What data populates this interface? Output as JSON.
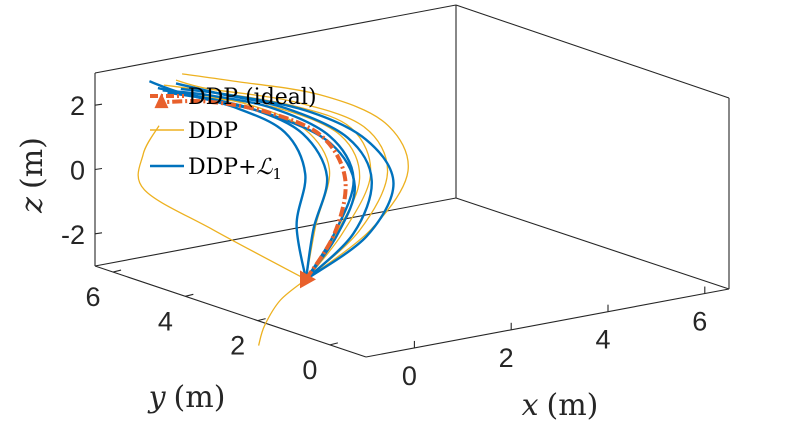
{
  "chart_data": {
    "type": "line",
    "dimension": "3d",
    "xlabel_var": "x",
    "xlabel_unit": "(m)",
    "ylabel_var": "y",
    "ylabel_unit": "(m)",
    "zlabel_var": "z",
    "zlabel_unit": "(m)",
    "xlim": [
      -1,
      6.5
    ],
    "ylim": [
      -1,
      6.5
    ],
    "zlim": [
      -3,
      3
    ],
    "x_ticks": [
      0,
      2,
      4,
      6
    ],
    "y_ticks": [
      0,
      2,
      4,
      6
    ],
    "z_ticks": [
      -2,
      0,
      2
    ],
    "x_tick_labels": [
      "0",
      "2",
      "4",
      "6"
    ],
    "y_tick_labels": [
      "0",
      "2",
      "4",
      "6"
    ],
    "z_tick_labels": [
      "-2",
      "0",
      "2"
    ],
    "grid": false,
    "legend_position": "top-left",
    "legend": [
      {
        "series": "ideal",
        "label": "DDP (ideal)",
        "color": "#e8602c",
        "style": "dash-dot"
      },
      {
        "series": "ddp",
        "label": "DDP",
        "color": "#edb120",
        "style": "solid"
      },
      {
        "series": "l1",
        "label_text": "DDP+",
        "label_symbol": "ℒ",
        "label_subscript": "1",
        "color": "#0072bd",
        "style": "solid"
      }
    ],
    "start_marker": {
      "x": 0,
      "y": 2,
      "z": -2,
      "color": "#e8602c"
    },
    "end_marker": {
      "x": 0,
      "y": 6,
      "z": 2,
      "color": "#e8602c"
    },
    "series": [
      {
        "name": "DDP (ideal)",
        "color": "#e8602c",
        "points": [
          {
            "x": 0,
            "y": 2,
            "z": -2
          },
          {
            "x": 1.5,
            "y": 3.2,
            "z": -1.4
          },
          {
            "x": 2.6,
            "y": 4.4,
            "z": -0.5
          },
          {
            "x": 2.7,
            "y": 5.2,
            "z": 0.5
          },
          {
            "x": 1.9,
            "y": 5.6,
            "z": 1.3
          },
          {
            "x": 0.9,
            "y": 5.9,
            "z": 1.8
          },
          {
            "x": 0,
            "y": 6,
            "z": 2
          }
        ]
      },
      {
        "name": "DDP",
        "color": "#edb120",
        "trajectories": [
          [
            {
              "x": 0,
              "y": 2,
              "z": -2
            },
            {
              "x": 2.0,
              "y": 3.2,
              "z": -1.5
            },
            {
              "x": 3.4,
              "y": 4.3,
              "z": -0.5
            },
            {
              "x": 3.5,
              "y": 5.1,
              "z": 0.6
            },
            {
              "x": 2.4,
              "y": 5.6,
              "z": 1.5
            },
            {
              "x": 0.9,
              "y": 5.9,
              "z": 2.2
            },
            {
              "x": 0.3,
              "y": 6.0,
              "z": 2.6
            }
          ],
          [
            {
              "x": 0,
              "y": 2,
              "z": -2
            },
            {
              "x": 1.8,
              "y": 3.4,
              "z": -1.6
            },
            {
              "x": 3.2,
              "y": 4.5,
              "z": -0.6
            },
            {
              "x": 3.4,
              "y": 5.3,
              "z": 0.5
            },
            {
              "x": 2.5,
              "y": 5.7,
              "z": 1.3
            },
            {
              "x": 1.1,
              "y": 6.0,
              "z": 2.0
            },
            {
              "x": 0.2,
              "y": 6.2,
              "z": 2.4
            }
          ],
          [
            {
              "x": 0,
              "y": 2,
              "z": -2
            },
            {
              "x": 2.1,
              "y": 3.0,
              "z": -1.4
            },
            {
              "x": 3.6,
              "y": 4.0,
              "z": -0.4
            },
            {
              "x": 3.8,
              "y": 4.9,
              "z": 0.7
            },
            {
              "x": 2.9,
              "y": 5.5,
              "z": 1.6
            },
            {
              "x": 1.4,
              "y": 5.9,
              "z": 2.3
            },
            {
              "x": 0.5,
              "y": 6.1,
              "z": 2.7
            }
          ],
          [
            {
              "x": 0,
              "y": 2,
              "z": -2
            },
            {
              "x": 1.6,
              "y": 3.3,
              "z": -1.5
            },
            {
              "x": 2.9,
              "y": 4.4,
              "z": -0.6
            },
            {
              "x": 3.1,
              "y": 5.2,
              "z": 0.4
            },
            {
              "x": 2.2,
              "y": 5.7,
              "z": 1.3
            },
            {
              "x": 0.9,
              "y": 6.0,
              "z": 1.9
            },
            {
              "x": 0.1,
              "y": 6.1,
              "z": 2.3
            }
          ],
          [
            {
              "x": 0,
              "y": 2,
              "z": -2
            },
            {
              "x": 1.4,
              "y": 3.6,
              "z": -1.3
            },
            {
              "x": 2.5,
              "y": 4.7,
              "z": -0.3
            },
            {
              "x": 2.5,
              "y": 5.4,
              "z": 0.7
            },
            {
              "x": 1.7,
              "y": 5.8,
              "z": 1.5
            },
            {
              "x": 0.6,
              "y": 6.1,
              "z": 2.1
            }
          ],
          [
            {
              "x": 0,
              "y": 2,
              "z": -2
            },
            {
              "x": -0.8,
              "y": 3.5,
              "z": -0.8
            },
            {
              "x": -1.4,
              "y": 4.6,
              "z": 0.2
            },
            {
              "x": -0.9,
              "y": 5.3,
              "z": 0.9
            },
            {
              "x": -0.2,
              "y": 5.8,
              "z": 1.4
            }
          ],
          [
            {
              "x": 0,
              "y": 2,
              "z": -2
            },
            {
              "x": -0.9,
              "y": 1.5,
              "z": -2.2
            },
            {
              "x": -1.6,
              "y": 1.0,
              "z": -2.6
            },
            {
              "x": -2.1,
              "y": 0.5,
              "z": -2.9
            }
          ]
        ]
      },
      {
        "name": "DDP+L1",
        "color": "#0072bd",
        "trajectories": [
          [
            {
              "x": 0,
              "y": 2,
              "z": -2
            },
            {
              "x": 1.5,
              "y": 3.2,
              "z": -1.4
            },
            {
              "x": 2.7,
              "y": 4.3,
              "z": -0.5
            },
            {
              "x": 2.8,
              "y": 5.1,
              "z": 0.5
            },
            {
              "x": 2.0,
              "y": 5.6,
              "z": 1.4
            },
            {
              "x": 0.9,
              "y": 5.9,
              "z": 2.0
            },
            {
              "x": 0.1,
              "y": 6.1,
              "z": 2.3
            }
          ],
          [
            {
              "x": 0,
              "y": 2,
              "z": -2
            },
            {
              "x": 1.8,
              "y": 3.1,
              "z": -1.5
            },
            {
              "x": 3.0,
              "y": 4.2,
              "z": -0.6
            },
            {
              "x": 3.1,
              "y": 5.0,
              "z": 0.4
            },
            {
              "x": 2.3,
              "y": 5.6,
              "z": 1.3
            },
            {
              "x": 1.1,
              "y": 5.9,
              "z": 2.0
            },
            {
              "x": 0.3,
              "y": 6.0,
              "z": 2.5
            }
          ],
          [
            {
              "x": 0,
              "y": 2,
              "z": -2
            },
            {
              "x": 1.2,
              "y": 3.4,
              "z": -1.3
            },
            {
              "x": 2.3,
              "y": 4.5,
              "z": -0.4
            },
            {
              "x": 2.4,
              "y": 5.3,
              "z": 0.6
            },
            {
              "x": 1.7,
              "y": 5.7,
              "z": 1.4
            },
            {
              "x": 0.7,
              "y": 6.0,
              "z": 2.0
            },
            {
              "x": 0.0,
              "y": 6.1,
              "z": 2.4
            }
          ],
          [
            {
              "x": 0,
              "y": 2,
              "z": -2
            },
            {
              "x": 2.0,
              "y": 3.0,
              "z": -1.6
            },
            {
              "x": 3.3,
              "y": 4.0,
              "z": -0.7
            },
            {
              "x": 3.4,
              "y": 4.9,
              "z": 0.3
            },
            {
              "x": 2.6,
              "y": 5.5,
              "z": 1.2
            },
            {
              "x": 1.3,
              "y": 5.9,
              "z": 1.9
            },
            {
              "x": 0.4,
              "y": 6.0,
              "z": 2.3
            }
          ],
          [
            {
              "x": 0,
              "y": 2,
              "z": -2
            },
            {
              "x": 1.0,
              "y": 3.6,
              "z": -1.2
            },
            {
              "x": 2.0,
              "y": 4.7,
              "z": -0.3
            },
            {
              "x": 2.1,
              "y": 5.4,
              "z": 0.7
            },
            {
              "x": 1.4,
              "y": 5.8,
              "z": 1.5
            },
            {
              "x": 0.5,
              "y": 6.1,
              "z": 2.1
            },
            {
              "x": -0.1,
              "y": 6.2,
              "z": 2.6
            }
          ],
          [
            {
              "x": 0,
              "y": 2,
              "z": -2
            },
            {
              "x": 1.6,
              "y": 3.3,
              "z": -1.6
            },
            {
              "x": 2.8,
              "y": 4.4,
              "z": -0.8
            },
            {
              "x": 2.9,
              "y": 5.2,
              "z": 0.2
            },
            {
              "x": 2.1,
              "y": 5.7,
              "z": 1.1
            },
            {
              "x": 1.0,
              "y": 6.0,
              "z": 1.8
            },
            {
              "x": 0.2,
              "y": 6.1,
              "z": 2.2
            }
          ]
        ]
      }
    ]
  }
}
